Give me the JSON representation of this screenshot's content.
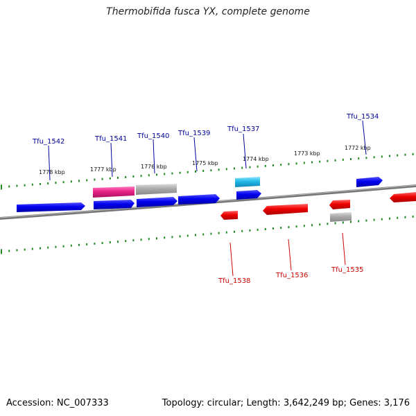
{
  "title": "Thermobifida fusca YX, complete genome",
  "footer": {
    "accession_label": "Accession:",
    "accession": "NC_007333",
    "topology_label": "Topology:",
    "topology": "circular",
    "length_label": "Length:",
    "length": "3,642,249 bp",
    "genes_label": "Genes:",
    "genes": "3,176"
  },
  "colors": {
    "forward_label": "#000099",
    "reverse_label": "#cc0000",
    "tick": "#228822",
    "backbone": "#777777",
    "blue": "#0000ee",
    "red": "#ee0000",
    "magenta": "#e8228a",
    "grey": "#a8a8a8",
    "cyan": "#22b8e8"
  },
  "kbp_labels": [
    "1778 kbp",
    "1777 kbp",
    "1776 kbp",
    "1775 kbp",
    "1774 kbp",
    "1773 kbp",
    "1772 kbp"
  ],
  "gene_labels": {
    "forward": [
      "Tfu_1542",
      "Tfu_1541",
      "Tfu_1540",
      "Tfu_1539",
      "Tfu_1537",
      "Tfu_1534"
    ],
    "reverse": [
      "Tfu_1538",
      "Tfu_1536",
      "Tfu_1535"
    ]
  }
}
